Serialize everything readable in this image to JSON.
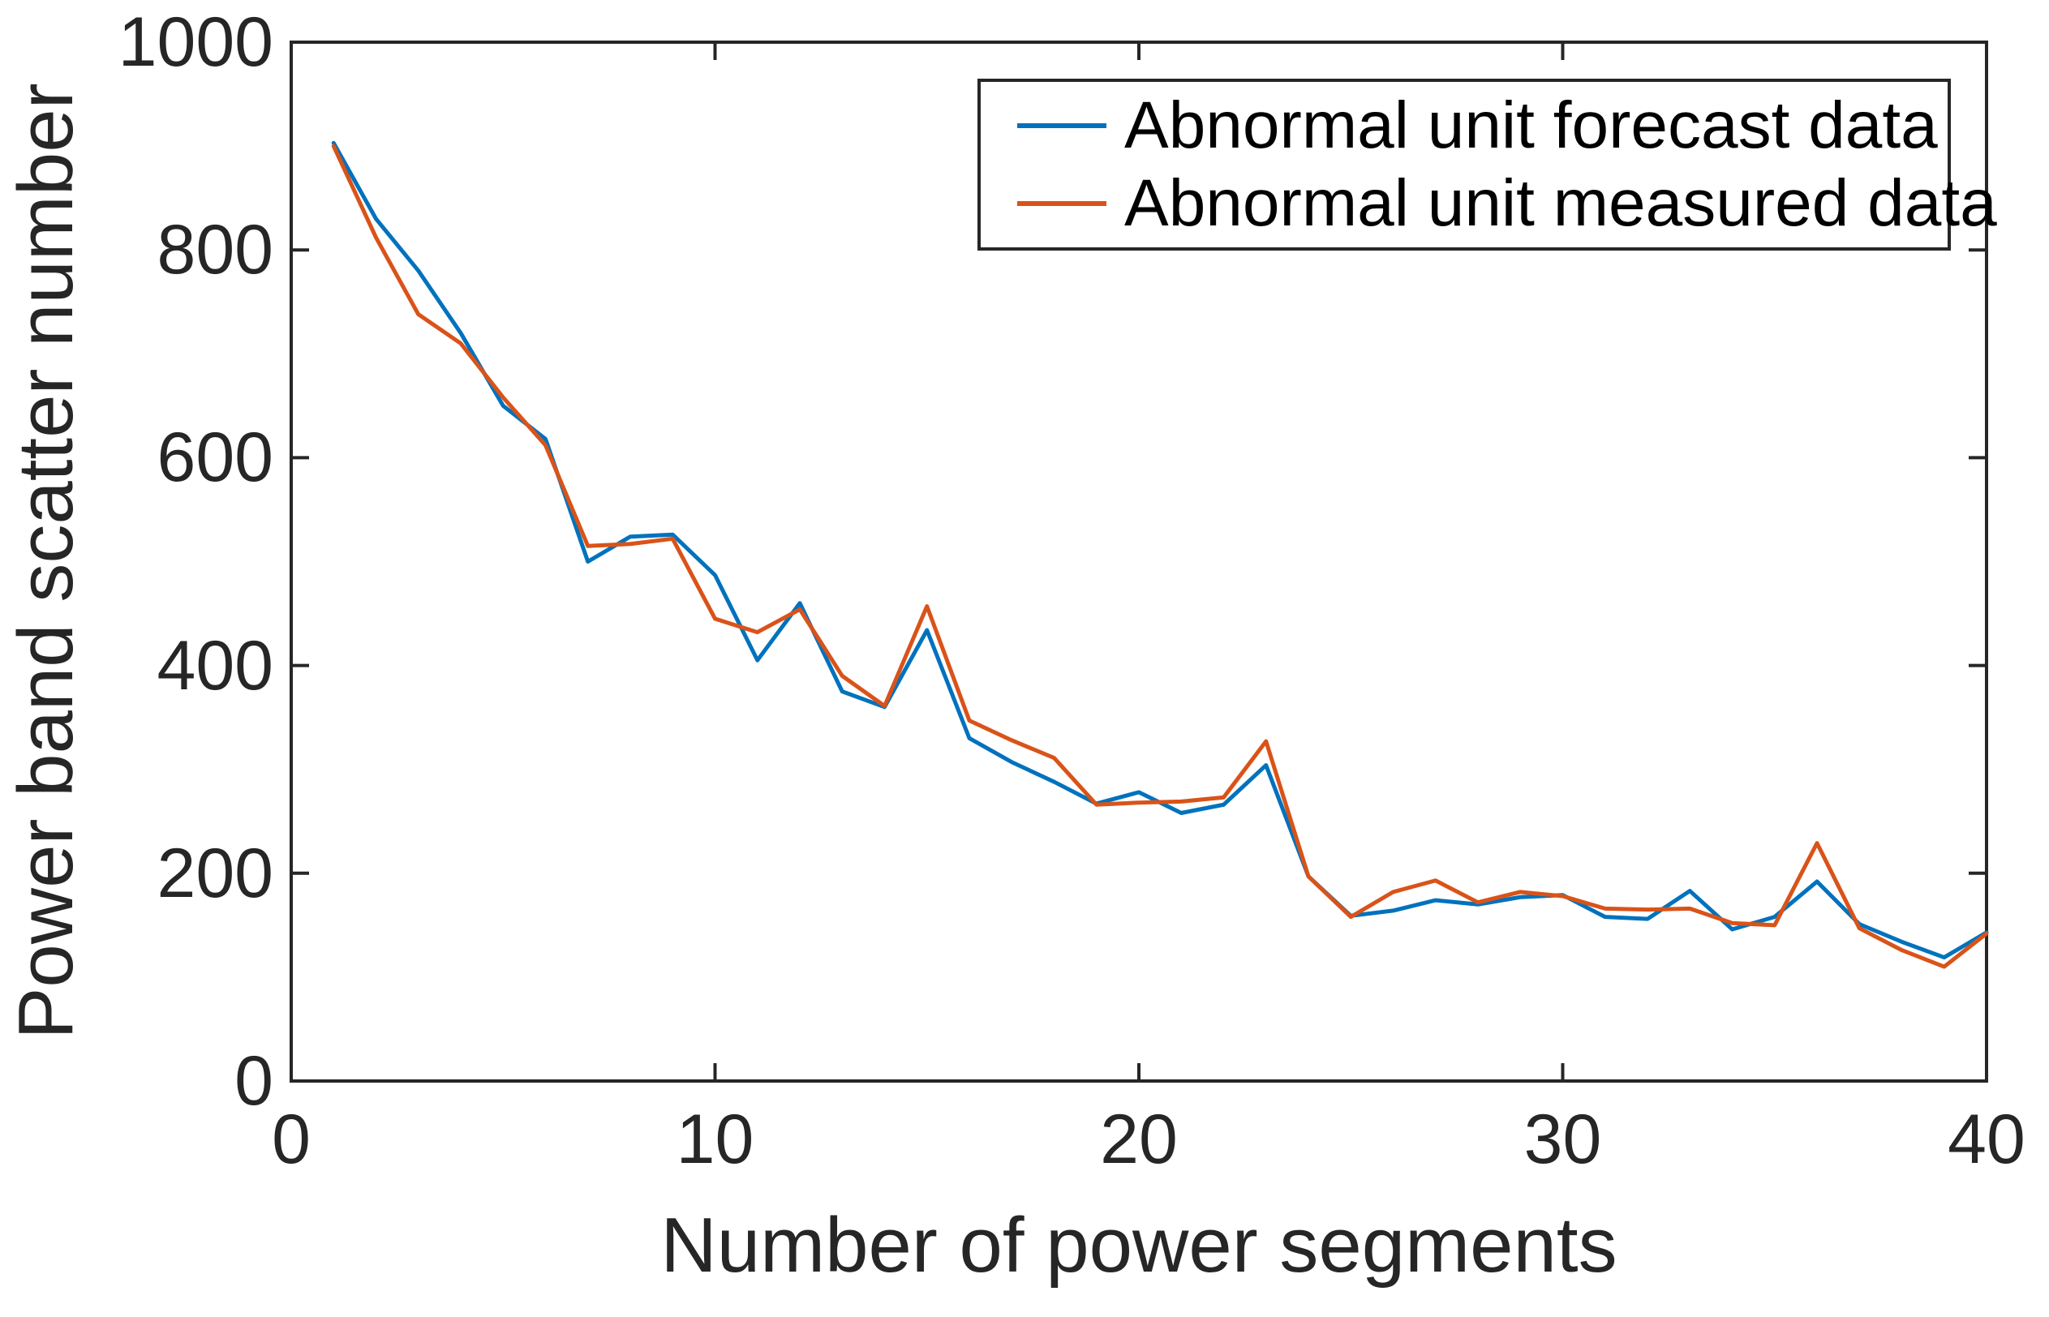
{
  "chart_data": {
    "type": "line",
    "title": "",
    "xlabel": "Number of power segments",
    "ylabel": "Power band scatter number",
    "xlim": [
      0,
      40
    ],
    "ylim": [
      0,
      1000
    ],
    "x_ticks": [
      0,
      10,
      20,
      30,
      40
    ],
    "y_ticks": [
      0,
      200,
      400,
      600,
      800,
      1000
    ],
    "grid": false,
    "legend_position": "top-right-inside",
    "axis_color": "#262626",
    "x": [
      1,
      2,
      3,
      4,
      5,
      6,
      7,
      8,
      9,
      10,
      11,
      12,
      13,
      14,
      15,
      16,
      17,
      18,
      19,
      20,
      21,
      22,
      23,
      24,
      25,
      26,
      27,
      28,
      29,
      30,
      31,
      32,
      33,
      34,
      35,
      36,
      37,
      38,
      39,
      40
    ],
    "series": [
      {
        "name": "Abnormal unit forecast data",
        "color": "#0072BD",
        "values": [
          903,
          830,
          780,
          720,
          650,
          618,
          500,
          524,
          526,
          487,
          405,
          460,
          375,
          360,
          434,
          330,
          307,
          288,
          267,
          278,
          258,
          266,
          304,
          197,
          159,
          164,
          174,
          170,
          177,
          179,
          158,
          156,
          183,
          146,
          158,
          192,
          151,
          134,
          119,
          143
        ]
      },
      {
        "name": "Abnormal unit measured data",
        "color": "#D95319",
        "values": [
          900,
          812,
          738,
          710,
          658,
          612,
          515,
          517,
          522,
          445,
          432,
          454,
          390,
          361,
          457,
          347,
          328,
          311,
          266,
          268,
          269,
          273,
          327,
          197,
          158,
          182,
          193,
          172,
          182,
          178,
          166,
          165,
          166,
          152,
          150,
          229,
          147,
          126,
          110,
          142
        ]
      }
    ]
  }
}
